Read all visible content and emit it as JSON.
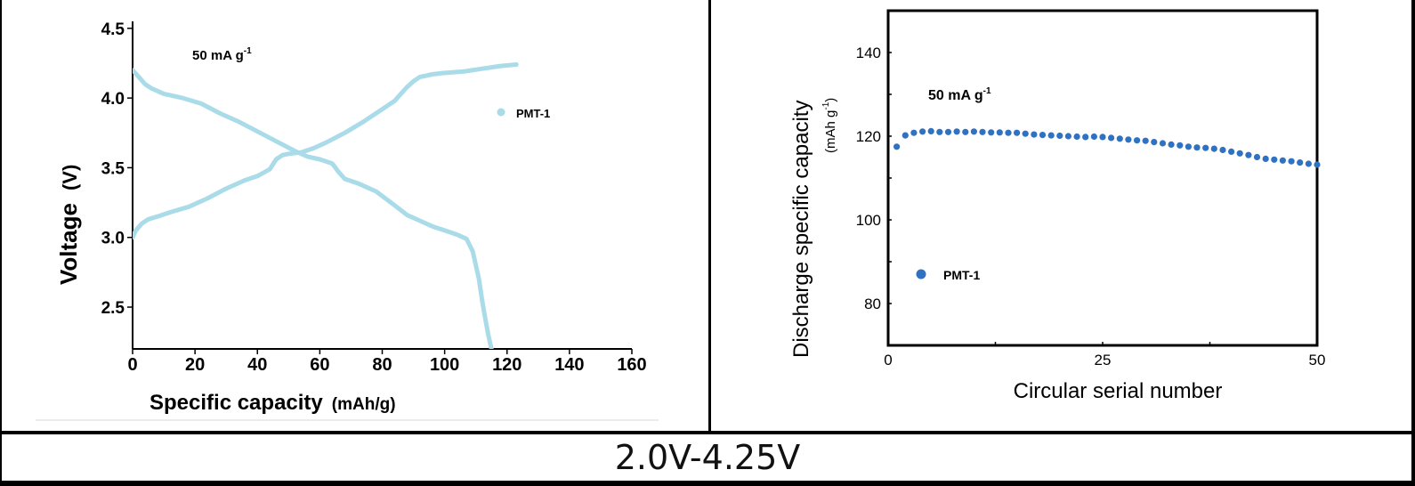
{
  "caption": "2.0V-4.25V",
  "colors": {
    "left_series": "#a9dbe9",
    "right_series": "#2f72c2",
    "axis": "#000000"
  },
  "chart_data": [
    {
      "type": "line",
      "xlabel": "Specific capacity",
      "xlabel_unit": "(mAh/g)",
      "ylabel": "Voltage",
      "ylabel_unit": "(V)",
      "annotation": {
        "text": "50 mA g",
        "sup": "-1"
      },
      "xlim": [
        0,
        160
      ],
      "ylim": [
        2.2,
        4.55
      ],
      "xticks": [
        "0",
        "20",
        "40",
        "60",
        "80",
        "100",
        "120",
        "140",
        "160"
      ],
      "yticks": [
        "2.5",
        "3.0",
        "3.5",
        "4.0",
        "4.5"
      ],
      "legend": {
        "label": "PMT-1",
        "placement": "right"
      },
      "series": [
        {
          "name": "PMT-1",
          "segment": "charge",
          "x": [
            0,
            1,
            3,
            5,
            8,
            12,
            18,
            24,
            30,
            36,
            40,
            44,
            46,
            48,
            50,
            54,
            58,
            62,
            68,
            74,
            80,
            84,
            86,
            88,
            90,
            92,
            96,
            100,
            106,
            112,
            118,
            123
          ],
          "y": [
            3.0,
            3.05,
            3.1,
            3.13,
            3.15,
            3.18,
            3.22,
            3.28,
            3.35,
            3.41,
            3.44,
            3.49,
            3.56,
            3.59,
            3.6,
            3.61,
            3.64,
            3.68,
            3.75,
            3.83,
            3.92,
            3.98,
            4.03,
            4.08,
            4.12,
            4.15,
            4.17,
            4.18,
            4.19,
            4.21,
            4.23,
            4.24
          ]
        },
        {
          "name": "PMT-1",
          "segment": "discharge",
          "x": [
            0,
            2,
            4,
            6,
            10,
            16,
            22,
            28,
            34,
            40,
            46,
            52,
            56,
            60,
            64,
            66,
            68,
            72,
            78,
            84,
            88,
            92,
            96,
            100,
            104,
            107,
            109,
            110,
            111,
            112,
            113,
            114,
            115
          ],
          "y": [
            4.2,
            4.15,
            4.1,
            4.07,
            4.03,
            4.0,
            3.96,
            3.89,
            3.83,
            3.76,
            3.69,
            3.62,
            3.58,
            3.56,
            3.53,
            3.47,
            3.42,
            3.39,
            3.33,
            3.23,
            3.16,
            3.12,
            3.08,
            3.05,
            3.02,
            2.99,
            2.9,
            2.8,
            2.7,
            2.55,
            2.42,
            2.3,
            2.2
          ]
        }
      ]
    },
    {
      "type": "scatter",
      "xlabel": "Circular serial number",
      "ylabel": "Discharge specific capacity",
      "ylabel_unit": "(mAh g",
      "ylabel_unit_sup": "-1",
      "ylabel_unit_close": ")",
      "annotation": {
        "text": "50 mA g",
        "sup": "-1"
      },
      "xlim": [
        0,
        50
      ],
      "ylim": [
        70,
        150
      ],
      "xticks": [
        "0",
        "25",
        "50"
      ],
      "yticks": [
        "80",
        "100",
        "120",
        "140"
      ],
      "legend": {
        "label": "PMT-1",
        "placement": "left-middle"
      },
      "series": [
        {
          "name": "PMT-1",
          "x": [
            1,
            2,
            3,
            4,
            5,
            6,
            7,
            8,
            9,
            10,
            11,
            12,
            13,
            14,
            15,
            16,
            17,
            18,
            19,
            20,
            21,
            22,
            23,
            24,
            25,
            26,
            27,
            28,
            29,
            30,
            31,
            32,
            33,
            34,
            35,
            36,
            37,
            38,
            39,
            40,
            41,
            42,
            43,
            44,
            45,
            46,
            47,
            48,
            49,
            50
          ],
          "y": [
            117.5,
            120.2,
            120.8,
            121.1,
            121.2,
            121.0,
            121.0,
            121.1,
            121.0,
            121.1,
            121.0,
            120.9,
            120.9,
            120.8,
            120.8,
            120.6,
            120.4,
            120.3,
            120.2,
            120.1,
            120.0,
            119.9,
            119.8,
            119.9,
            119.8,
            119.6,
            119.4,
            119.2,
            119.0,
            118.9,
            118.6,
            118.3,
            118.0,
            117.8,
            117.5,
            117.3,
            117.2,
            117.0,
            116.7,
            116.3,
            115.9,
            115.5,
            115.0,
            114.6,
            114.4,
            114.2,
            114.0,
            113.7,
            113.4,
            113.2
          ]
        }
      ]
    }
  ]
}
